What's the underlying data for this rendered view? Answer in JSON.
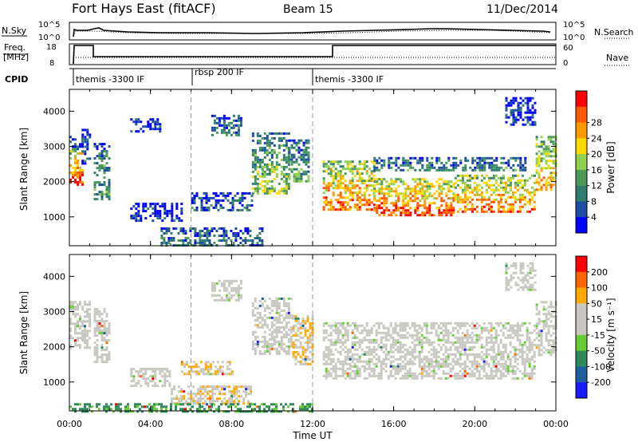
{
  "header": {
    "station": "Fort Hays East (fitACF)",
    "beam": "Beam 15",
    "date": "11/Dec/2014"
  },
  "labels": {
    "n_sky": "N.Sky",
    "n_search": "N.Search",
    "freq": "Freq.",
    "freq_unit": "[MHz]",
    "nave": "Nave",
    "cpid": "CPID"
  },
  "noise_panel": {
    "left_ticks": [
      "10^5",
      "10^0"
    ],
    "right_ticks": [
      "10^5",
      "10^0"
    ]
  },
  "freq_panel": {
    "left_ticks": [
      "18",
      "8"
    ],
    "right_ticks": [
      "60",
      "0"
    ]
  },
  "cpid_segments": [
    {
      "label": "themis -3300 IF",
      "start_h": 0,
      "end_h": 6
    },
    {
      "label": "rbsp 200 IF",
      "start_h": 6,
      "end_h": 12
    },
    {
      "label": "themis -3300 IF",
      "start_h": 12,
      "end_h": 24
    }
  ],
  "colors": {
    "power": [
      "#0000ff",
      "#1e4ea0",
      "#2e7d6e",
      "#4a9a5a",
      "#8fd14f",
      "#ffd800",
      "#ff9a00",
      "#ff5a00",
      "#ff0000"
    ],
    "velocity": [
      "#1a1aff",
      "#1e5fa0",
      "#2e8a5a",
      "#66cc33",
      "#c8c8c0",
      "#c8c8c0",
      "#ffaa00",
      "#ff6600",
      "#ff0000"
    ]
  },
  "chart_data": [
    {
      "type": "heatmap",
      "name": "power",
      "ylabel": "Slant Range [km]",
      "ylim": [
        180,
        4620
      ],
      "xlim": [
        0,
        24
      ],
      "yticks": [
        1000,
        2000,
        3000,
        4000
      ],
      "colorbar_label": "Power [dB]",
      "colorbar_ticks": [
        "4",
        "8",
        "12",
        "16",
        "20",
        "24",
        "28"
      ],
      "colorbar_range": [
        0,
        30
      ],
      "regions": [
        {
          "t0": 0.0,
          "t1": 0.6,
          "r0": 1900,
          "r1": 2900,
          "level": 0.85
        },
        {
          "t0": 0.0,
          "t1": 0.6,
          "r0": 2900,
          "r1": 3300,
          "level": 0.2
        },
        {
          "t0": 0.6,
          "t1": 1.0,
          "r0": 2500,
          "r1": 3500,
          "level": 0.2
        },
        {
          "t0": 1.2,
          "t1": 2.0,
          "r0": 1500,
          "r1": 3100,
          "level": 0.35
        },
        {
          "t0": 3.0,
          "t1": 4.5,
          "r0": 3400,
          "r1": 3800,
          "level": 0.1
        },
        {
          "t0": 3.0,
          "t1": 5.5,
          "r0": 900,
          "r1": 1400,
          "level": 0.1
        },
        {
          "t0": 4.5,
          "t1": 9.5,
          "r0": 200,
          "r1": 700,
          "level": 0.25
        },
        {
          "t0": 6.0,
          "t1": 9.0,
          "r0": 1200,
          "r1": 1700,
          "level": 0.2
        },
        {
          "t0": 7.0,
          "t1": 8.5,
          "r0": 3300,
          "r1": 3900,
          "level": 0.25
        },
        {
          "t0": 9.0,
          "t1": 10.8,
          "r0": 1700,
          "r1": 3400,
          "level": 0.45
        },
        {
          "t0": 10.8,
          "t1": 11.8,
          "r0": 2000,
          "r1": 3200,
          "level": 0.35
        },
        {
          "t0": 12.5,
          "t1": 15.0,
          "r0": 1200,
          "r1": 2600,
          "level": 0.75
        },
        {
          "t0": 15.0,
          "t1": 19.0,
          "r0": 1050,
          "r1": 2100,
          "level": 0.8
        },
        {
          "t0": 15.0,
          "t1": 22.5,
          "r0": 2300,
          "r1": 2700,
          "level": 0.3
        },
        {
          "t0": 19.0,
          "t1": 23.0,
          "r0": 1150,
          "r1": 2200,
          "level": 0.75
        },
        {
          "t0": 23.0,
          "t1": 24.0,
          "r0": 1800,
          "r1": 3300,
          "level": 0.65
        },
        {
          "t0": 21.5,
          "t1": 23.0,
          "r0": 3600,
          "r1": 4400,
          "level": 0.15
        }
      ]
    },
    {
      "type": "heatmap",
      "name": "velocity",
      "ylabel": "Slant Range [km]",
      "ylim": [
        180,
        4620
      ],
      "xlim": [
        0,
        24
      ],
      "yticks": [
        1000,
        2000,
        3000,
        4000
      ],
      "xlabel": "Time UT",
      "xticks": [
        "00:00",
        "04:00",
        "08:00",
        "12:00",
        "16:00",
        "20:00",
        "00:00"
      ],
      "colorbar_label": "Velocity [m s⁻¹]",
      "colorbar_ticks": [
        "200",
        "100",
        "50",
        "15",
        "-15",
        "-50",
        "-100",
        "-200"
      ],
      "regions": [
        {
          "t0": 0.0,
          "t1": 1.0,
          "r0": 2000,
          "r1": 3300,
          "level": 0.5
        },
        {
          "t0": 1.2,
          "t1": 2.0,
          "r0": 1600,
          "r1": 3100,
          "level": 0.5
        },
        {
          "t0": 3.0,
          "t1": 5.0,
          "r0": 900,
          "r1": 1400,
          "level": 0.5
        },
        {
          "t0": 5.5,
          "t1": 8.0,
          "r0": 1200,
          "r1": 1600,
          "level": 0.65
        },
        {
          "t0": 5.0,
          "t1": 9.0,
          "r0": 400,
          "r1": 900,
          "level": 0.65
        },
        {
          "t0": 0.0,
          "t1": 12.0,
          "r0": 180,
          "r1": 400,
          "level": 0.3
        },
        {
          "t0": 7.0,
          "t1": 8.5,
          "r0": 3300,
          "r1": 3900,
          "level": 0.5
        },
        {
          "t0": 9.0,
          "t1": 11.0,
          "r0": 1800,
          "r1": 3400,
          "level": 0.5
        },
        {
          "t0": 11.0,
          "t1": 12.0,
          "r0": 1500,
          "r1": 2900,
          "level": 0.65
        },
        {
          "t0": 12.5,
          "t1": 23.0,
          "r0": 1100,
          "r1": 2700,
          "level": 0.5
        },
        {
          "t0": 23.0,
          "t1": 24.0,
          "r0": 1800,
          "r1": 3300,
          "level": 0.5
        },
        {
          "t0": 21.5,
          "t1": 23.0,
          "r0": 3600,
          "r1": 4400,
          "level": 0.5
        }
      ]
    }
  ]
}
